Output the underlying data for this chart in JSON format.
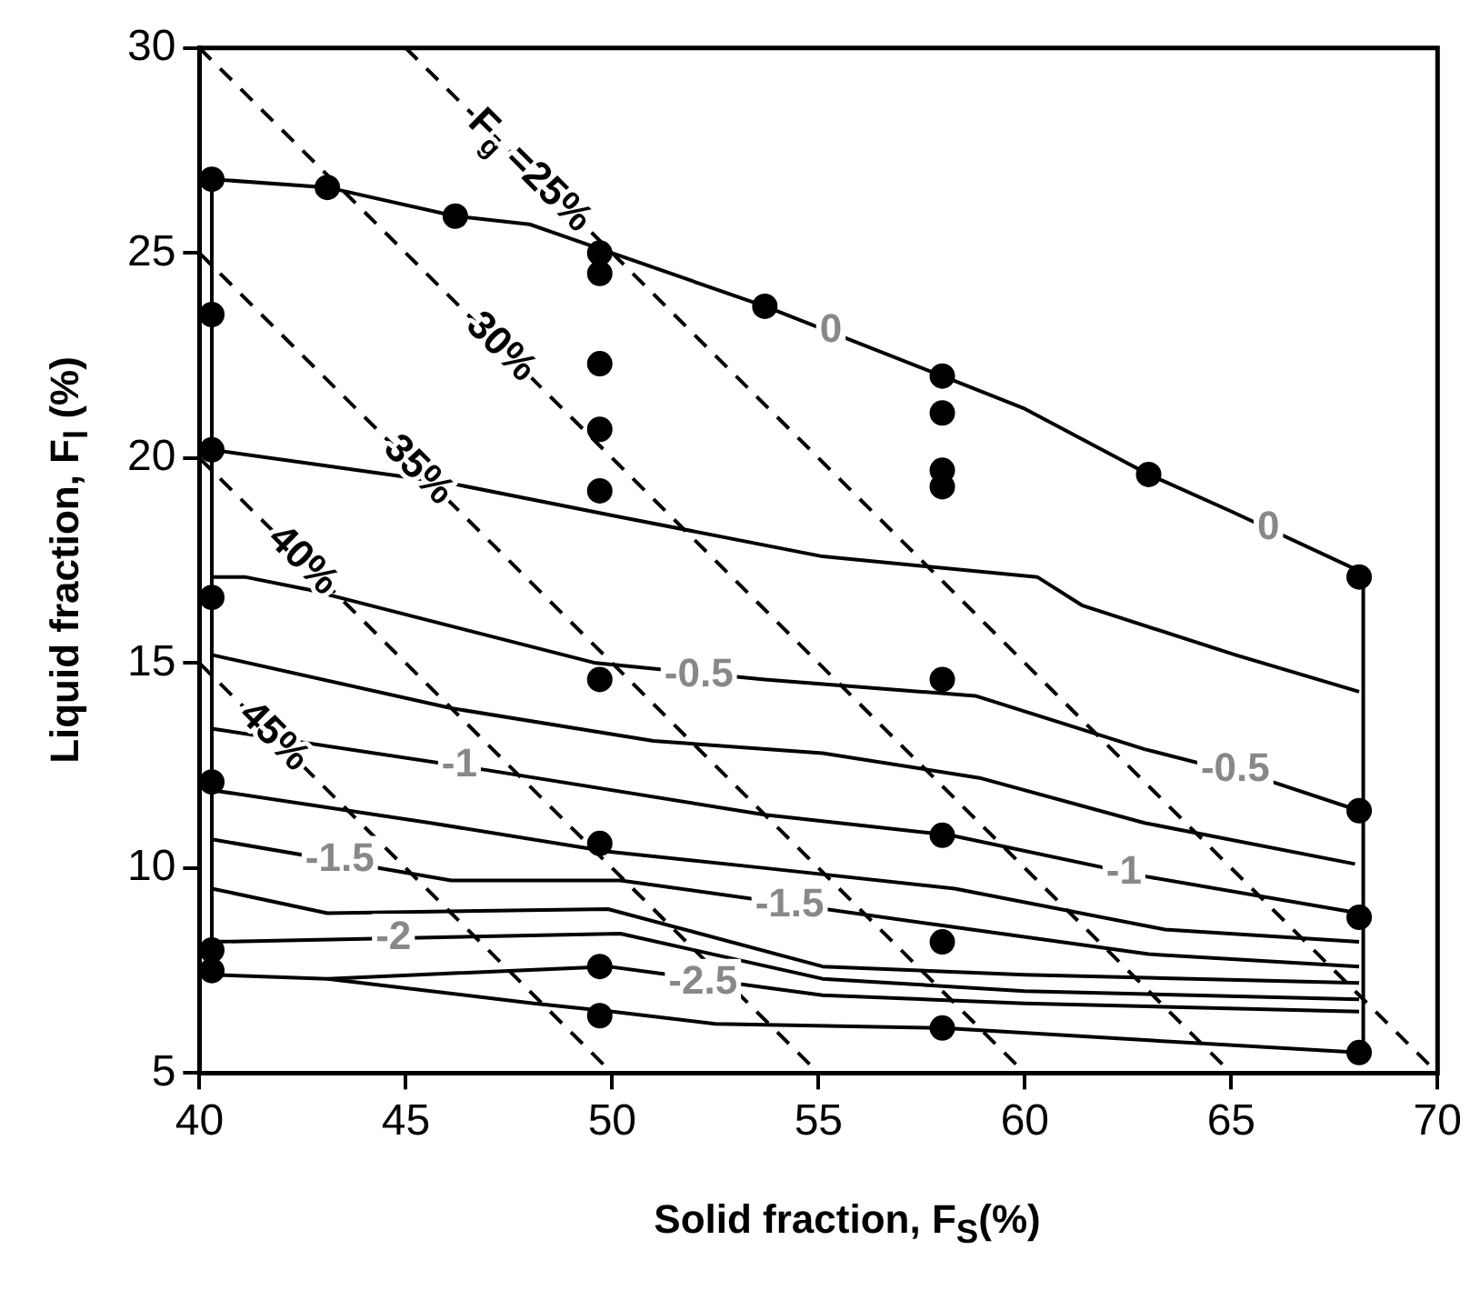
{
  "chart_data": {
    "type": "line",
    "xlabel": "Solid fraction, F$_{S}$(%)",
    "ylabel": "Liquid fraction, F$_{l}$ (%)",
    "xlim": [
      40,
      70
    ],
    "xticks": [
      40,
      45,
      50,
      55,
      60,
      65,
      70
    ],
    "ylim": [
      5,
      30
    ],
    "yticks": [
      5,
      10,
      15,
      20,
      25,
      30
    ],
    "grid": false,
    "legend": false,
    "marker": "none",
    "line_style": "solid",
    "series": [
      {
        "color": "#000000",
        "x": [
          40.3,
          43.1,
          46.2,
          48,
          50,
          53.7,
          58,
          60,
          63,
          65,
          68.2
        ],
        "values": [
          26.8,
          26.6,
          25.9,
          25.7,
          25.0,
          23.7,
          22.0,
          21.2,
          19.6,
          18.7,
          17.2
        ]
      },
      {
        "color": "#000000",
        "x": [
          40.3,
          46,
          50,
          55.1,
          60.3,
          61.4,
          65.1,
          68.1
        ],
        "values": [
          20.2,
          19.4,
          18.6,
          17.6,
          17.1,
          16.4,
          15.2,
          14.3
        ]
      },
      {
        "color": "#000000",
        "x": [
          40.3,
          41.1,
          42.6,
          49.6,
          53.7,
          57.5,
          58.8,
          62.9,
          66,
          68.1
        ],
        "values": [
          17.1,
          17.1,
          16.8,
          15.0,
          14.6,
          14.3,
          14.2,
          12.9,
          12.1,
          11.4
        ]
      },
      {
        "color": "#000000",
        "x": [
          40.3,
          46.1,
          51,
          55.1,
          58.9,
          62.9,
          68
        ],
        "values": [
          15.2,
          13.9,
          13.1,
          12.8,
          12.2,
          11.1,
          10.1
        ]
      },
      {
        "color": "#000000",
        "x": [
          40.3,
          46.9,
          53.7,
          58.2,
          62.9,
          68.1
        ],
        "values": [
          13.4,
          12.4,
          11.3,
          10.8,
          9.8,
          8.9
        ]
      },
      {
        "color": "#000000",
        "x": [
          40.3,
          45.6,
          49.9,
          53.7,
          58.3,
          63.4,
          68.1
        ],
        "values": [
          11.9,
          11.1,
          10.4,
          10.0,
          9.5,
          8.5,
          8.2
        ]
      },
      {
        "color": "#000000",
        "x": [
          40.3,
          46.1,
          50.2,
          58,
          63,
          68.1
        ],
        "values": [
          10.7,
          9.7,
          9.7,
          8.6,
          7.9,
          7.6
        ]
      },
      {
        "color": "#000000",
        "x": [
          40.3,
          43.1,
          49.9,
          55.1,
          60,
          68.1
        ],
        "values": [
          9.5,
          8.9,
          9.0,
          7.6,
          7.4,
          7.2
        ]
      },
      {
        "color": "#000000",
        "x": [
          40.3,
          50.2,
          55.1,
          60,
          68.1
        ],
        "values": [
          8.2,
          8.4,
          7.3,
          7.0,
          6.8
        ]
      },
      {
        "color": "#000000",
        "x": [
          43.1,
          49.9,
          55.1,
          60,
          68.1
        ],
        "values": [
          7.3,
          7.6,
          6.9,
          6.7,
          6.5
        ]
      },
      {
        "color": "#000000",
        "x": [
          40.3,
          43.1,
          48.1,
          50,
          52.5,
          58,
          63,
          68.1
        ],
        "values": [
          7.4,
          7.3,
          6.7,
          6.5,
          6.2,
          6.1,
          5.8,
          5.5
        ]
      },
      {
        "color": "#000000",
        "x": [
          40.3,
          40.3
        ],
        "values": [
          7.4,
          26.8
        ]
      },
      {
        "color": "#000000",
        "x": [
          68.2,
          68.2
        ],
        "values": [
          5.5,
          17.2
        ]
      },
      {
        "name": "F$_{g}$ =25%",
        "color": "#000000",
        "line_style": "dashed",
        "x": [
          45,
          48,
          70
        ],
        "values": [
          30,
          27,
          5
        ]
      },
      {
        "name": "30%",
        "color": "#000000",
        "line_style": "dashed",
        "x": [
          40,
          47.3,
          65
        ],
        "values": [
          30,
          22.7,
          5
        ]
      },
      {
        "name": "35%",
        "color": "#000000",
        "line_style": "dashed",
        "x": [
          40,
          45.3,
          60
        ],
        "values": [
          25,
          19.7,
          5
        ]
      },
      {
        "name": "40%",
        "color": "#000000",
        "line_style": "dashed",
        "x": [
          40,
          42.5,
          55
        ],
        "values": [
          20,
          17.5,
          5
        ]
      },
      {
        "name": "45%",
        "color": "#000000",
        "line_style": "dashed",
        "x": [
          40,
          41.8,
          50
        ],
        "values": [
          15,
          13.2,
          5
        ]
      },
      {
        "type": "scatter",
        "color": "#000000",
        "marker": "circle",
        "x": [
          40.3,
          40.3,
          40.3,
          40.3,
          40.3,
          40.3,
          40.3,
          43.1,
          46.2,
          49.7,
          49.7,
          49.7,
          49.7,
          49.7,
          49.7,
          49.7,
          49.7,
          49.7,
          53.7,
          58,
          58,
          58,
          58,
          58,
          58,
          58,
          58,
          63,
          68.1,
          68.1,
          68.1,
          68.1
        ],
        "values": [
          26.8,
          23.5,
          20.2,
          16.6,
          12.1,
          8.0,
          7.5,
          26.6,
          25.9,
          25.0,
          24.5,
          22.3,
          20.7,
          19.2,
          14.6,
          10.6,
          7.6,
          6.4,
          23.7,
          22.0,
          21.1,
          19.7,
          19.3,
          14.6,
          10.8,
          8.2,
          6.1,
          19.6,
          17.1,
          11.4,
          8.8,
          5.5
        ]
      }
    ],
    "annotations": [
      {
        "text": "0",
        "x": 55.3,
        "y": 23.1
      },
      {
        "text": "0",
        "x": 65.9,
        "y": 18.3
      },
      {
        "text": "-0.5",
        "x": 52.1,
        "y": 14.7
      },
      {
        "text": "-0.5",
        "x": 65.1,
        "y": 12.4
      },
      {
        "text": "-1",
        "x": 46.3,
        "y": 12.5
      },
      {
        "text": "-1",
        "x": 62.4,
        "y": 9.9
      },
      {
        "text": "-1.5",
        "x": 43.4,
        "y": 10.2
      },
      {
        "text": "-1.5",
        "x": 54.3,
        "y": 9.1
      },
      {
        "text": "-2",
        "x": 44.7,
        "y": 8.3
      },
      {
        "text": "-2.5",
        "x": 52.2,
        "y": 7.2
      }
    ]
  }
}
